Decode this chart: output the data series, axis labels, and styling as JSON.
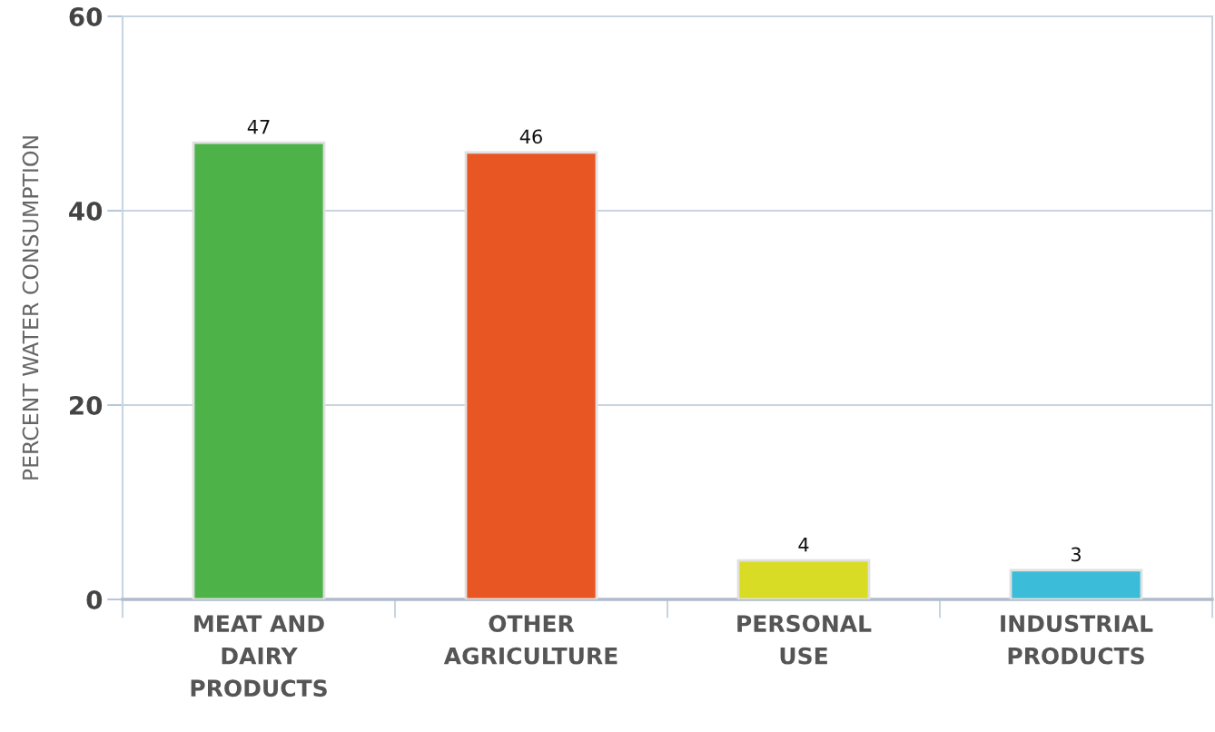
{
  "chart_data": {
    "type": "bar",
    "ylabel": "PERCENT WATER CONSUMPTION",
    "categories": [
      "MEAT AND\nDAIRY\nPRODUCTS",
      "OTHER\nAGRICULTURE",
      "PERSONAL\nUSE",
      "INDUSTRIAL\nPRODUCTS"
    ],
    "values": [
      47,
      46,
      4,
      3
    ],
    "colors": [
      "#4db348",
      "#e85624",
      "#d9dc24",
      "#3bbdd9"
    ],
    "ylim": [
      0,
      60
    ],
    "yticks": [
      0,
      20,
      40,
      60
    ],
    "grid": "y",
    "data_labels": true
  }
}
